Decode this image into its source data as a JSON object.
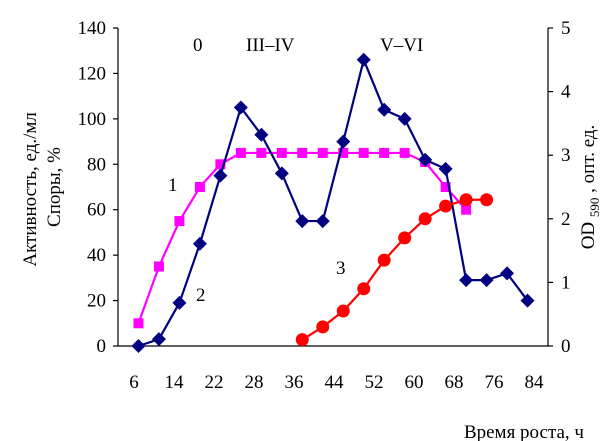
{
  "chart_data": {
    "type": "line",
    "x_ticks": [
      6,
      14,
      22,
      28,
      36,
      44,
      52,
      60,
      68,
      76,
      84
    ],
    "y_left": {
      "label_lines": [
        "Активность, ед./мл",
        "Споры, %"
      ],
      "ticks": [
        0,
        20,
        40,
        60,
        80,
        100,
        120,
        140
      ],
      "range": [
        0,
        140
      ]
    },
    "y_right": {
      "label_prefix": "OD",
      "label_sub": "590",
      "label_suffix": ", опт. ед.",
      "ticks": [
        0,
        1,
        2,
        3,
        4,
        5
      ],
      "range": [
        0,
        5
      ]
    },
    "xlabel": "Время роста, ч",
    "x_range": [
      2,
      86
    ],
    "annotations": {
      "stage0": "0",
      "stage3_4": "III–IV",
      "stage5_6": "V–VI",
      "curve1": "1",
      "curve2": "2",
      "curve3": "3"
    },
    "series": [
      {
        "name": "1",
        "axis": "left",
        "color": "#ff00ff",
        "marker": "square",
        "x": [
          6,
          10,
          14,
          18,
          22,
          26,
          30,
          34,
          38,
          42,
          46,
          50,
          54,
          58,
          62,
          66,
          70
        ],
        "y": [
          10,
          35,
          55,
          70,
          80,
          85,
          85,
          85,
          85,
          85,
          85,
          85,
          85,
          85,
          81,
          70,
          60
        ]
      },
      {
        "name": "2",
        "axis": "left",
        "color": "#000080",
        "marker": "diamond",
        "x": [
          6,
          10,
          14,
          18,
          22,
          26,
          30,
          34,
          38,
          42,
          46,
          50,
          54,
          58,
          62,
          66,
          70,
          74,
          78,
          82
        ],
        "y": [
          0,
          3,
          19,
          45,
          75,
          105,
          93,
          76,
          55,
          55,
          90,
          126,
          104,
          100,
          82,
          78,
          29,
          29,
          32,
          20
        ]
      },
      {
        "name": "3",
        "axis": "right",
        "color": "#ff0000",
        "marker": "circle",
        "x": [
          38,
          42,
          46,
          50,
          54,
          58,
          62,
          66,
          70,
          74
        ],
        "y": [
          0.1,
          0.3,
          0.55,
          0.9,
          1.35,
          1.7,
          2.0,
          2.2,
          2.3,
          2.3
        ]
      }
    ]
  }
}
